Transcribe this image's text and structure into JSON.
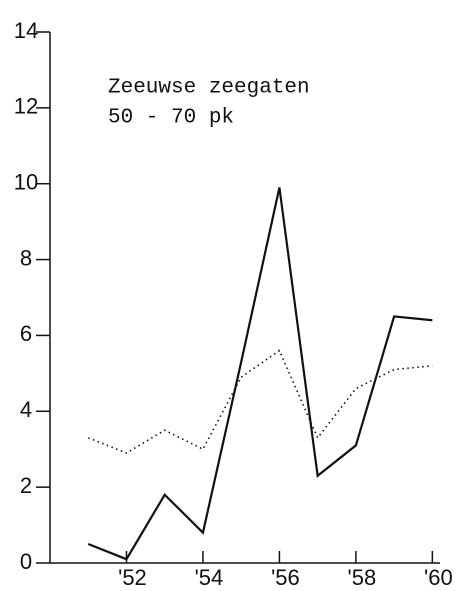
{
  "chart_data": {
    "type": "line",
    "title": [
      "Zeeuwse zeegaten",
      "50 - 70 pk"
    ],
    "x": [
      51,
      52,
      53,
      54,
      55,
      56,
      57,
      58,
      59,
      60
    ],
    "series": [
      {
        "values": [
          0.5,
          0.1,
          1.8,
          0.8,
          5.3,
          9.9,
          2.3,
          3.1,
          6.5,
          6.4
        ],
        "color": "#111111",
        "dash": "solid"
      },
      {
        "values": [
          3.3,
          2.9,
          3.5,
          3.0,
          4.9,
          5.6,
          3.3,
          4.6,
          5.1,
          5.2
        ],
        "color": "#111111",
        "dash": "dotted"
      }
    ],
    "xlim": [
      50,
      60.2
    ],
    "xticks": [
      {
        "value": 52,
        "label": "'52"
      },
      {
        "value": 54,
        "label": "'54"
      },
      {
        "value": 56,
        "label": "'56"
      },
      {
        "value": 58,
        "label": "'58"
      },
      {
        "value": 60,
        "label": "'60"
      }
    ],
    "ylim": [
      0,
      14
    ],
    "yticks": [
      0,
      2,
      4,
      6,
      8,
      10,
      12,
      14
    ],
    "grid": false
  }
}
